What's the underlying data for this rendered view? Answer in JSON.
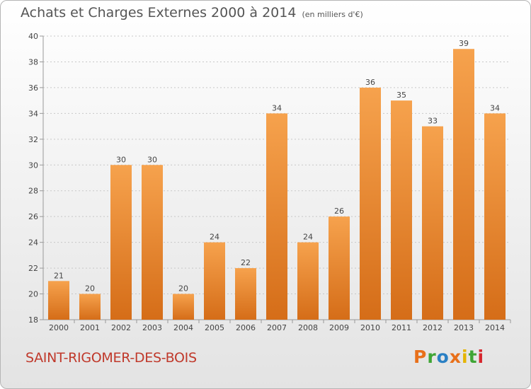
{
  "title": "Achats et Charges Externes 2000 à 2014",
  "unit": "(en milliers d'€)",
  "city": "SAINT-RIGOMER-DES-BOIS",
  "logo": {
    "text": "Proxiti",
    "colors": [
      "#e8701a",
      "#3fa535",
      "#2a80c4",
      "#e8701a",
      "#e5b400",
      "#3fa535",
      "#d6272e"
    ]
  },
  "colors": {
    "bar_top": "#f6a24d",
    "bar_bottom": "#d56d18",
    "axis": "#999999",
    "grid": "#c8c8c8",
    "label": "#444444"
  },
  "chart_data": {
    "type": "bar",
    "categories": [
      "2000",
      "2001",
      "2002",
      "2003",
      "2004",
      "2005",
      "2006",
      "2007",
      "2008",
      "2009",
      "2010",
      "2011",
      "2012",
      "2013",
      "2014"
    ],
    "values": [
      21,
      20,
      30,
      30,
      20,
      24,
      22,
      34,
      24,
      26,
      36,
      35,
      33,
      39,
      34
    ],
    "ylim": [
      18,
      40
    ],
    "yticks": [
      18,
      20,
      22,
      24,
      26,
      28,
      30,
      32,
      34,
      36,
      38,
      40
    ],
    "grid": true
  }
}
